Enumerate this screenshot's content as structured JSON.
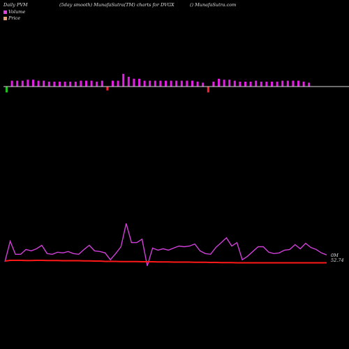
{
  "header": {
    "left": "Daily PVM",
    "center": "(5day smooth) MunafaSutra(TM) charts for DVGX",
    "right": "() MunafaSutra.com"
  },
  "legend": [
    {
      "label": "Volume",
      "color": "#e040e0"
    },
    {
      "label": "Price",
      "color": "#e8a070"
    }
  ],
  "colors": {
    "up_bar": "#e020e0",
    "down_bar": "#ff2030",
    "baseline": "#d8d8d8",
    "volume_line": "#d040d8",
    "price_line": "#ff1818",
    "first_bar": "#20c020"
  },
  "right_labels": {
    "line1": "0M",
    "line2": "52.74"
  },
  "chart_data": {
    "type": "bar+line",
    "volume_bars": [
      {
        "v": -0.6,
        "c": "g"
      },
      {
        "v": 0.6,
        "c": "u"
      },
      {
        "v": 0.6,
        "c": "u"
      },
      {
        "v": 0.6,
        "c": "u"
      },
      {
        "v": 0.7,
        "c": "u"
      },
      {
        "v": 0.7,
        "c": "u"
      },
      {
        "v": 0.6,
        "c": "u"
      },
      {
        "v": 0.6,
        "c": "u"
      },
      {
        "v": 0.5,
        "c": "u"
      },
      {
        "v": 0.5,
        "c": "u"
      },
      {
        "v": 0.5,
        "c": "u"
      },
      {
        "v": 0.5,
        "c": "u"
      },
      {
        "v": 0.5,
        "c": "u"
      },
      {
        "v": 0.5,
        "c": "u"
      },
      {
        "v": 0.6,
        "c": "u"
      },
      {
        "v": 0.6,
        "c": "u"
      },
      {
        "v": 0.6,
        "c": "u"
      },
      {
        "v": 0.5,
        "c": "u"
      },
      {
        "v": 0.6,
        "c": "u"
      },
      {
        "v": -0.4,
        "c": "d"
      },
      {
        "v": 0.6,
        "c": "u"
      },
      {
        "v": 0.6,
        "c": "u"
      },
      {
        "v": 1.3,
        "c": "u"
      },
      {
        "v": 1.0,
        "c": "u"
      },
      {
        "v": 0.8,
        "c": "u"
      },
      {
        "v": 0.8,
        "c": "u"
      },
      {
        "v": 0.6,
        "c": "u"
      },
      {
        "v": 0.6,
        "c": "u"
      },
      {
        "v": 0.6,
        "c": "u"
      },
      {
        "v": 0.6,
        "c": "u"
      },
      {
        "v": 0.6,
        "c": "u"
      },
      {
        "v": 0.6,
        "c": "u"
      },
      {
        "v": 0.6,
        "c": "u"
      },
      {
        "v": 0.6,
        "c": "u"
      },
      {
        "v": 0.6,
        "c": "u"
      },
      {
        "v": 0.6,
        "c": "u"
      },
      {
        "v": 0.5,
        "c": "u"
      },
      {
        "v": 0.4,
        "c": "u"
      },
      {
        "v": -0.6,
        "c": "d"
      },
      {
        "v": 0.5,
        "c": "u"
      },
      {
        "v": 0.8,
        "c": "u"
      },
      {
        "v": 0.7,
        "c": "u"
      },
      {
        "v": 0.7,
        "c": "u"
      },
      {
        "v": 0.6,
        "c": "u"
      },
      {
        "v": 0.5,
        "c": "u"
      },
      {
        "v": 0.5,
        "c": "u"
      },
      {
        "v": 0.5,
        "c": "u"
      },
      {
        "v": 0.6,
        "c": "u"
      },
      {
        "v": 0.5,
        "c": "u"
      },
      {
        "v": 0.5,
        "c": "u"
      },
      {
        "v": 0.5,
        "c": "u"
      },
      {
        "v": 0.5,
        "c": "u"
      },
      {
        "v": 0.6,
        "c": "u"
      },
      {
        "v": 0.6,
        "c": "u"
      },
      {
        "v": 0.6,
        "c": "u"
      },
      {
        "v": 0.6,
        "c": "u"
      },
      {
        "v": 0.5,
        "c": "u"
      },
      {
        "v": 0.4,
        "c": "u"
      }
    ],
    "volume_line": [
      2,
      32,
      13,
      13,
      20,
      18,
      21,
      26,
      14,
      13,
      16,
      15,
      17,
      14,
      13,
      20,
      26,
      18,
      17,
      15,
      5,
      14,
      24,
      58,
      30,
      30,
      35,
      -4,
      22,
      19,
      21,
      19,
      22,
      25,
      24,
      25,
      28,
      18,
      14,
      13,
      23,
      30,
      37,
      25,
      30,
      5,
      10,
      17,
      24,
      24,
      16,
      14,
      15,
      19,
      20,
      27,
      21,
      29,
      23,
      20,
      15,
      12
    ],
    "price_line": [
      12,
      16,
      16,
      16,
      15,
      15,
      16,
      16,
      15,
      15,
      15,
      14,
      14,
      14,
      14,
      13,
      13,
      12,
      12,
      10,
      10,
      10,
      9,
      9,
      9,
      9,
      8,
      8,
      8,
      7,
      7,
      7,
      6,
      6,
      6,
      6,
      5,
      5,
      5,
      4,
      4,
      3,
      3,
      3,
      2,
      2,
      2,
      2,
      2,
      2,
      2,
      2,
      2,
      2,
      2,
      2,
      2,
      2,
      2,
      2,
      2,
      2
    ]
  }
}
